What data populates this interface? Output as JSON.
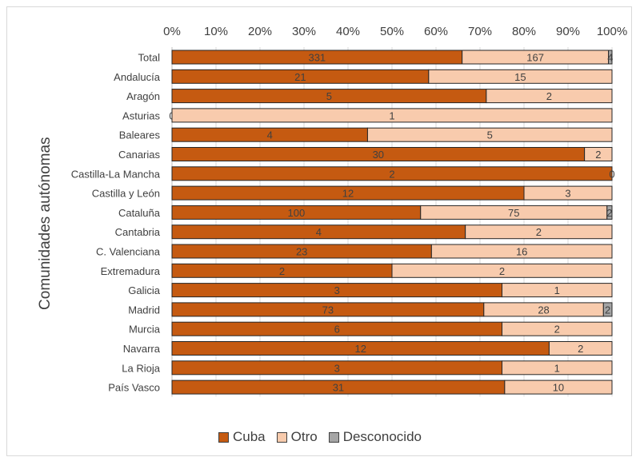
{
  "chart_data": {
    "type": "bar",
    "orientation": "horizontal",
    "stacked": "percent",
    "ylabel": "Comunidades autónomas",
    "xlim": [
      0,
      100
    ],
    "x_tick_labels": [
      "0%",
      "10%",
      "20%",
      "30%",
      "40%",
      "50%",
      "60%",
      "70%",
      "80%",
      "90%",
      "100%"
    ],
    "x_axis_position": "top",
    "grid": true,
    "legend_position": "bottom",
    "categories": [
      "Total",
      "Andalucía",
      "Aragón",
      "Asturias",
      "Baleares",
      "Canarias",
      "Castilla-La Mancha",
      "Castilla y León",
      "Cataluña",
      "Cantabria",
      "C. Valenciana",
      "Extremadura",
      "Galicia",
      "Madrid",
      "Murcia",
      "Navarra",
      "La Rioja",
      "País Vasco"
    ],
    "series": [
      {
        "name": "Cuba",
        "color": "#c55a11",
        "values": [
          331,
          21,
          5,
          0,
          4,
          30,
          2,
          12,
          100,
          4,
          23,
          2,
          3,
          73,
          6,
          12,
          3,
          31
        ]
      },
      {
        "name": "Otro",
        "color": "#f8cbad",
        "values": [
          167,
          15,
          2,
          1,
          5,
          2,
          0,
          3,
          75,
          2,
          16,
          2,
          1,
          28,
          2,
          2,
          1,
          10
        ]
      },
      {
        "name": "Desconocido",
        "color": "#a5a5a5",
        "values": [
          4,
          0,
          0,
          0,
          0,
          0,
          0,
          0,
          2,
          0,
          0,
          0,
          0,
          2,
          0,
          0,
          0,
          0
        ]
      }
    ],
    "data_labels": [
      [
        "331",
        "167",
        "4"
      ],
      [
        "21",
        "15",
        ""
      ],
      [
        "5",
        "2",
        ""
      ],
      [
        "0",
        "1",
        ""
      ],
      [
        "4",
        "5",
        ""
      ],
      [
        "30",
        "2",
        ""
      ],
      [
        "2",
        "0",
        ""
      ],
      [
        "12",
        "3",
        ""
      ],
      [
        "100",
        "75",
        "2"
      ],
      [
        "4",
        "2",
        ""
      ],
      [
        "23",
        "16",
        ""
      ],
      [
        "2",
        "2",
        ""
      ],
      [
        "3",
        "1",
        ""
      ],
      [
        "73",
        "28",
        "2"
      ],
      [
        "6",
        "2",
        ""
      ],
      [
        "12",
        "2",
        ""
      ],
      [
        "3",
        "1",
        ""
      ],
      [
        "31",
        "10",
        ""
      ]
    ]
  }
}
